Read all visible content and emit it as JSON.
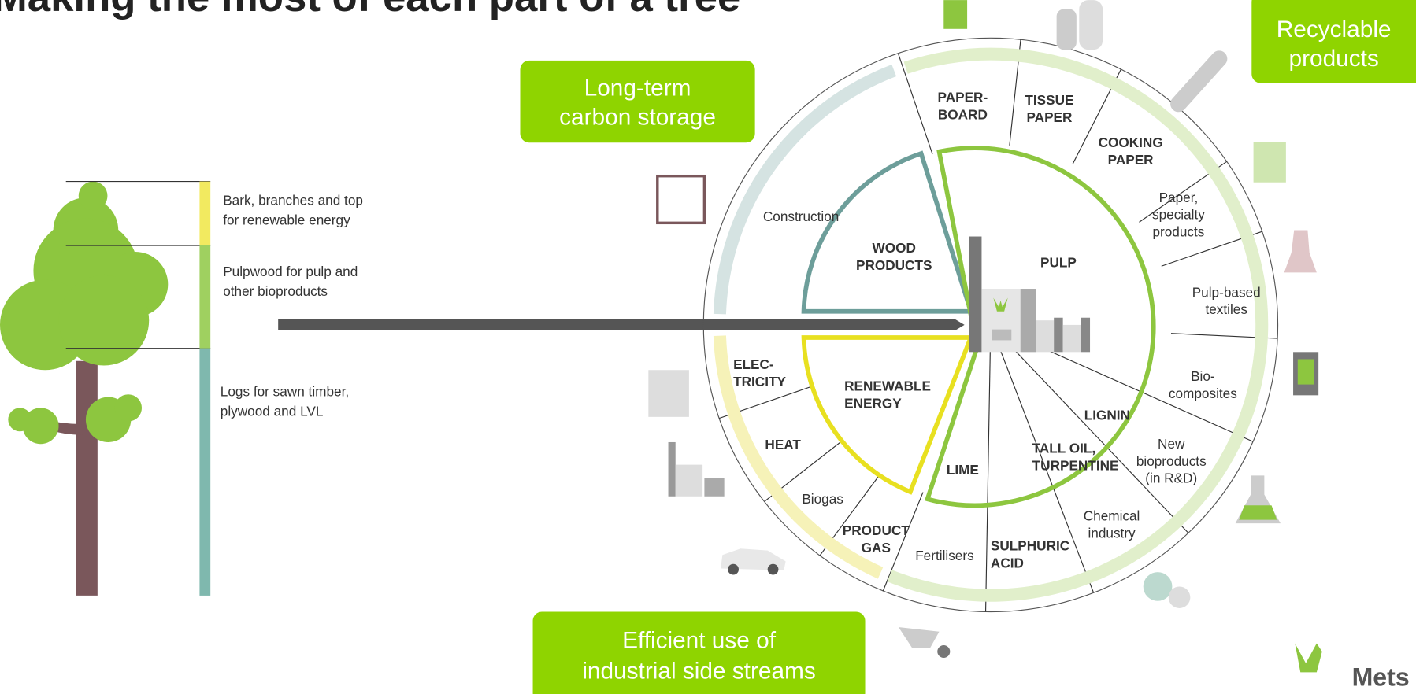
{
  "title": "Making the most of each part of a tree",
  "tree_labels": [
    [
      "Bark, branches and top",
      "for renewable energy"
    ],
    [
      "Pulpwood for pulp and",
      "other bioproducts"
    ],
    [
      "Logs for sawn timber,",
      "plywood and LVL"
    ]
  ],
  "callouts": [
    [
      "Long-term",
      "carbon storage"
    ],
    [
      "Recyclable",
      "products"
    ],
    [
      "Efficient use of",
      "industrial side streams"
    ]
  ],
  "inner": {
    "wood_products": [
      "WOOD",
      "PRODUCTS"
    ],
    "pulp": [
      "PULP"
    ],
    "renewable_energy": [
      "RENEWABLE",
      "ENERGY"
    ],
    "lime": [
      "LIME"
    ],
    "tall_oil": [
      "TALL OIL,",
      "TURPENTINE"
    ],
    "lignin": [
      "LIGNIN"
    ]
  },
  "outer": {
    "paperboard": [
      "PAPER-",
      "BOARD"
    ],
    "tissue_paper": [
      "TISSUE",
      "PAPER"
    ],
    "cooking_paper": [
      "COOKING",
      "PAPER"
    ],
    "specialty": [
      "Paper,",
      "specialty",
      "products"
    ],
    "textiles": [
      "Pulp-based",
      "textiles"
    ],
    "biocomposites": [
      "Bio-",
      "composites"
    ],
    "new_bioproducts": [
      "New",
      "bioproducts",
      "(in R&D)"
    ],
    "chemical": [
      "Chemical",
      "industry"
    ],
    "sulphuric_acid": [
      "SULPHURIC",
      "ACID"
    ],
    "fertilisers": [
      "Fertilisers"
    ],
    "product_gas": [
      "PRODUCT",
      "GAS"
    ],
    "biogas": [
      "Biogas"
    ],
    "heat": [
      "HEAT"
    ],
    "electricity": [
      "ELEC-",
      "TRICITY"
    ],
    "construction": [
      "Construction"
    ]
  },
  "logo": "Mets"
}
